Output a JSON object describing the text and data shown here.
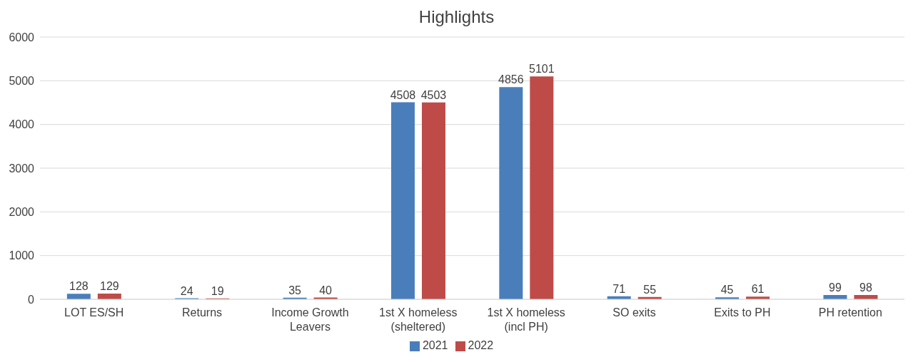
{
  "chart_data": {
    "type": "bar",
    "title": "Highlights",
    "categories": [
      "LOT ES/SH",
      "Returns",
      "Income Growth Leavers",
      "1st X homeless (sheltered)",
      "1st X homeless (incl PH)",
      "SO exits",
      "Exits to PH",
      "PH retention"
    ],
    "series": [
      {
        "name": "2021",
        "color": "#4a7ebb",
        "values": [
          128,
          24,
          35,
          4508,
          4856,
          71,
          45,
          99
        ]
      },
      {
        "name": "2022",
        "color": "#be4b48",
        "values": [
          129,
          19,
          40,
          4503,
          5101,
          55,
          61,
          98
        ]
      }
    ],
    "ylim": [
      0,
      6000
    ],
    "yticks": [
      0,
      1000,
      2000,
      3000,
      4000,
      5000,
      6000
    ],
    "grid": "y",
    "legend": "bottom",
    "data_labels": true
  }
}
